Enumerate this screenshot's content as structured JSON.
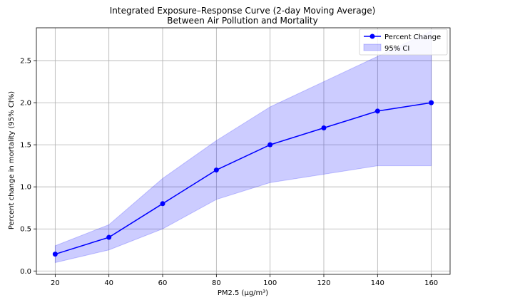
{
  "chart_data": {
    "type": "line",
    "title": "Integrated Exposure–Response Curve (2-day Moving Average)",
    "subtitle": "Between Air Pollution and Mortality",
    "xlabel": "PM2.5 (μg/m³)",
    "ylabel": "Percent change in mortality (95% CI%)",
    "x": [
      20,
      40,
      60,
      80,
      100,
      120,
      140,
      160
    ],
    "xticks": [
      "20",
      "40",
      "60",
      "80",
      "100",
      "120",
      "140",
      "160"
    ],
    "yticks": [
      "0.0",
      "0.5",
      "1.0",
      "1.5",
      "2.0",
      "2.5"
    ],
    "xlim": [
      13,
      167
    ],
    "ylim": [
      -0.04,
      2.89
    ],
    "grid": true,
    "legend_position": "top-right",
    "series": [
      {
        "name": "Percent Change",
        "values": [
          0.2,
          0.4,
          0.8,
          1.2,
          1.5,
          1.7,
          1.9,
          2.0
        ],
        "color": "#0000ff"
      }
    ],
    "band": {
      "name": "95% CI",
      "lower": [
        0.1,
        0.25,
        0.5,
        0.85,
        1.05,
        1.15,
        1.25,
        1.25
      ],
      "upper": [
        0.3,
        0.55,
        1.1,
        1.55,
        1.95,
        2.25,
        2.55,
        2.85
      ],
      "color": "#0000ff",
      "opacity": 0.2
    }
  }
}
